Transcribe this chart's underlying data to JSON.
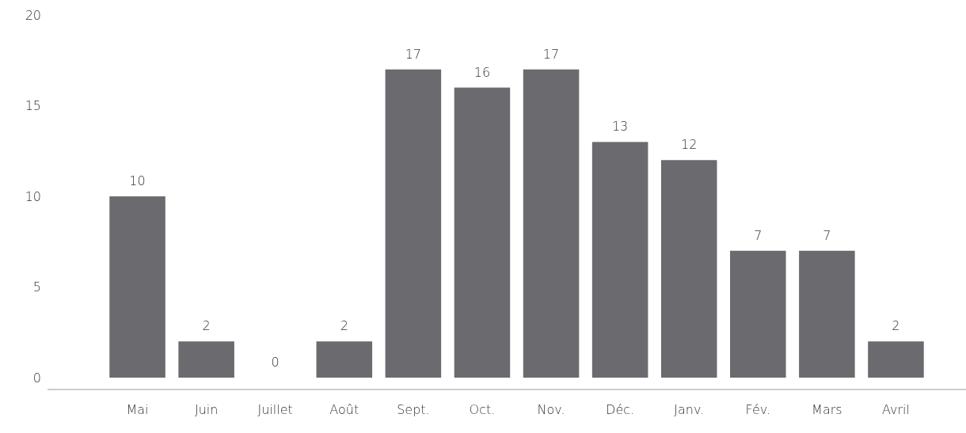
{
  "chart_data": {
    "type": "bar",
    "categories": [
      "Mai",
      "Juin",
      "Juillet",
      "Août",
      "Sept.",
      "Oct.",
      "Nov.",
      "Déc.",
      "Janv.",
      "Fév.",
      "Mars",
      "Avril"
    ],
    "values": [
      10,
      2,
      0,
      2,
      17,
      16,
      17,
      13,
      12,
      7,
      7,
      2
    ],
    "color": "#6b6b6f",
    "ylim": [
      -0.65,
      20
    ],
    "yticks": [
      0,
      5,
      10,
      15,
      20
    ],
    "grid": false,
    "data_labels": true
  }
}
